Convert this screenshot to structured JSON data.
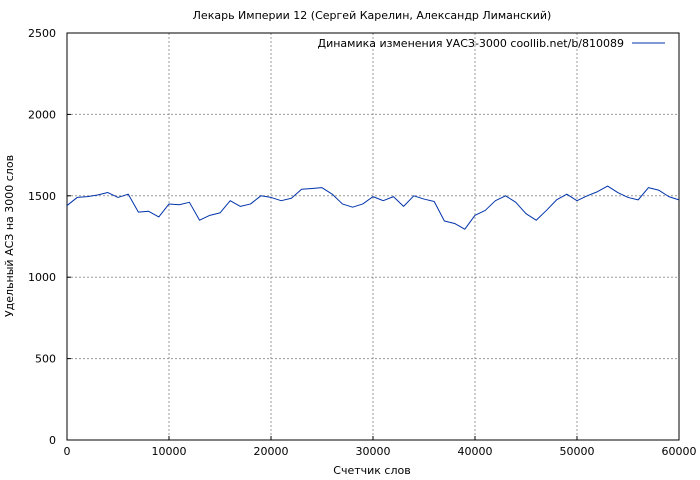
{
  "chart_data": {
    "type": "line",
    "title": "Лекарь Империи 12 (Сергей Карелин, Александр Лиманский)",
    "xlabel": "Счетчик слов",
    "ylabel": "Удельный АСЗ на 3000 слов",
    "xlim": [
      0,
      60000
    ],
    "ylim": [
      0,
      2500
    ],
    "xticks": [
      "0",
      "10000",
      "20000",
      "30000",
      "40000",
      "50000",
      "60000"
    ],
    "yticks": [
      "0",
      "500",
      "1000",
      "1500",
      "2000",
      "2500"
    ],
    "grid": true,
    "legend_position": "top-right",
    "series_color": "#0033aa",
    "series": [
      {
        "name": "Динамика изменения УАСЗ-3000 coollib.net/b/810089",
        "x": [
          0,
          1000,
          2000,
          3000,
          4000,
          5000,
          6000,
          7000,
          8000,
          9000,
          10000,
          11000,
          12000,
          13000,
          14000,
          15000,
          16000,
          17000,
          18000,
          19000,
          20000,
          21000,
          22000,
          23000,
          24000,
          25000,
          26000,
          27000,
          28000,
          29000,
          30000,
          31000,
          32000,
          33000,
          34000,
          35000,
          36000,
          37000,
          38000,
          39000,
          40000,
          41000,
          42000,
          43000,
          44000,
          45000,
          46000,
          47000,
          48000,
          49000,
          50000,
          51000,
          52000,
          53000,
          54000,
          55000,
          56000,
          57000,
          58000,
          59000,
          60000
        ],
        "y": [
          1440,
          1490,
          1495,
          1505,
          1520,
          1490,
          1510,
          1400,
          1405,
          1370,
          1450,
          1445,
          1460,
          1350,
          1380,
          1395,
          1470,
          1435,
          1450,
          1500,
          1490,
          1470,
          1485,
          1540,
          1545,
          1550,
          1510,
          1450,
          1430,
          1450,
          1495,
          1470,
          1495,
          1435,
          1500,
          1480,
          1465,
          1345,
          1330,
          1295,
          1380,
          1410,
          1470,
          1500,
          1460,
          1390,
          1350,
          1410,
          1475,
          1510,
          1470,
          1500,
          1525,
          1560,
          1520,
          1490,
          1475,
          1550,
          1535,
          1495,
          1475
        ]
      }
    ]
  }
}
